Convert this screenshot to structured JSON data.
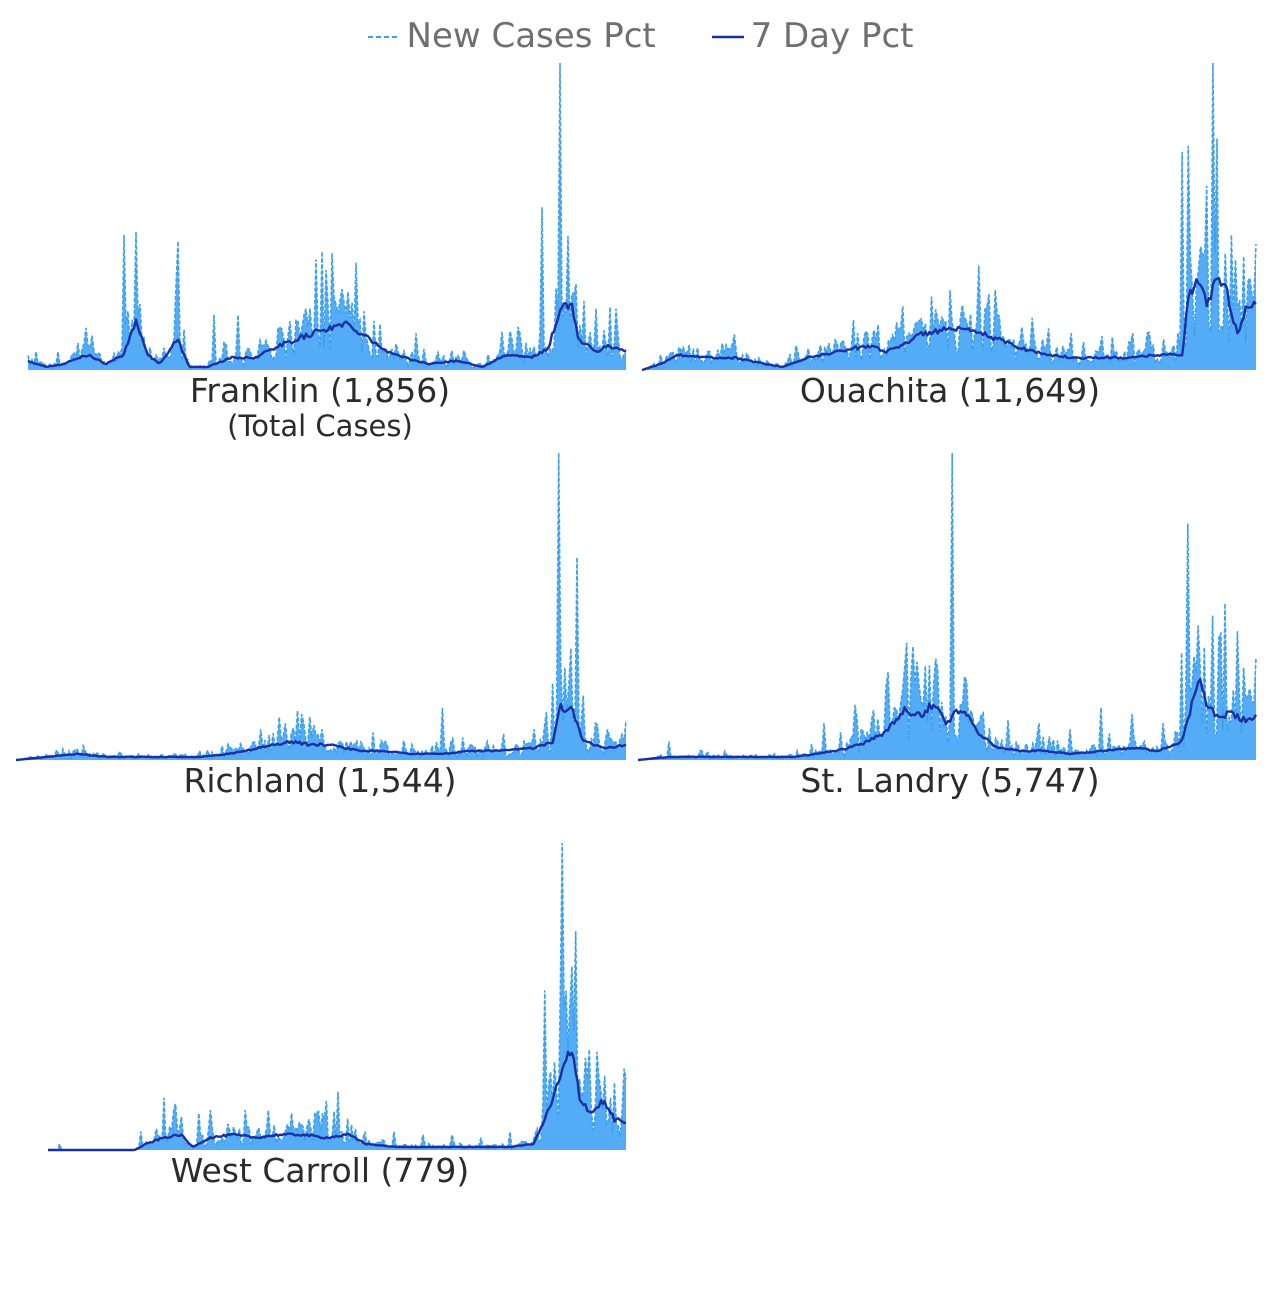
{
  "legend": {
    "items": [
      {
        "label": "New Cases Pct",
        "style": "dashed",
        "color": "#3fa0ea"
      },
      {
        "label": "7 Day Pct",
        "style": "solid",
        "color": "#1a2fa3"
      }
    ]
  },
  "colors": {
    "bar": "#54acf7",
    "daily": "#3fa0ea",
    "avg": "#1a2fa3",
    "text": "#2b2b2b",
    "legend_text": "#6f6f6f"
  },
  "chart_data": [
    {
      "type": "bar",
      "title": "Franklin (1,856)",
      "subtitle": "(Total Cases)",
      "spikes": [
        [
          0.05,
          0.06
        ],
        [
          0.1,
          0.08
        ],
        [
          0.16,
          0.44
        ],
        [
          0.18,
          0.45
        ],
        [
          0.25,
          0.42
        ],
        [
          0.31,
          0.18
        ],
        [
          0.35,
          0.18
        ],
        [
          0.45,
          0.16
        ],
        [
          0.46,
          0.18
        ],
        [
          0.47,
          0.2
        ],
        [
          0.48,
          0.36
        ],
        [
          0.51,
          0.38
        ],
        [
          0.53,
          0.22
        ],
        [
          0.55,
          0.35
        ],
        [
          0.58,
          0.16
        ],
        [
          0.59,
          0.15
        ],
        [
          0.65,
          0.12
        ],
        [
          0.82,
          0.14
        ],
        [
          0.86,
          0.53
        ],
        [
          0.89,
          1.0
        ],
        [
          0.91,
          0.2
        ],
        [
          0.93,
          0.12
        ],
        [
          0.95,
          0.2
        ]
      ],
      "avg_shape": [
        [
          0.0,
          0.03
        ],
        [
          0.03,
          0.01
        ],
        [
          0.06,
          0.02
        ],
        [
          0.1,
          0.05
        ],
        [
          0.13,
          0.02
        ],
        [
          0.16,
          0.05
        ],
        [
          0.18,
          0.16
        ],
        [
          0.2,
          0.05
        ],
        [
          0.22,
          0.02
        ],
        [
          0.25,
          0.1
        ],
        [
          0.27,
          0.01
        ],
        [
          0.3,
          0.01
        ],
        [
          0.34,
          0.04
        ],
        [
          0.38,
          0.04
        ],
        [
          0.42,
          0.08
        ],
        [
          0.45,
          0.1
        ],
        [
          0.49,
          0.13
        ],
        [
          0.53,
          0.15
        ],
        [
          0.56,
          0.12
        ],
        [
          0.6,
          0.06
        ],
        [
          0.63,
          0.04
        ],
        [
          0.67,
          0.02
        ],
        [
          0.72,
          0.03
        ],
        [
          0.76,
          0.01
        ],
        [
          0.8,
          0.05
        ],
        [
          0.84,
          0.04
        ],
        [
          0.87,
          0.07
        ],
        [
          0.89,
          0.2
        ],
        [
          0.91,
          0.21
        ],
        [
          0.92,
          0.1
        ],
        [
          0.95,
          0.06
        ],
        [
          0.97,
          0.08
        ],
        [
          1.0,
          0.06
        ]
      ]
    },
    {
      "type": "bar",
      "title": "Ouachita (11,649)",
      "spikes": [
        [
          0.05,
          0.06
        ],
        [
          0.15,
          0.05
        ],
        [
          0.25,
          0.08
        ],
        [
          0.35,
          0.12
        ],
        [
          0.38,
          0.1
        ],
        [
          0.42,
          0.14
        ],
        [
          0.45,
          0.16
        ],
        [
          0.48,
          0.16
        ],
        [
          0.5,
          0.26
        ],
        [
          0.53,
          0.16
        ],
        [
          0.55,
          0.34
        ],
        [
          0.58,
          0.13
        ],
        [
          0.62,
          0.14
        ],
        [
          0.7,
          0.12
        ],
        [
          0.75,
          0.11
        ],
        [
          0.8,
          0.12
        ],
        [
          0.85,
          0.1
        ],
        [
          0.88,
          0.71
        ],
        [
          0.89,
          0.73
        ],
        [
          0.91,
          0.31
        ],
        [
          0.92,
          0.6
        ],
        [
          0.93,
          1.0
        ],
        [
          0.95,
          0.38
        ],
        [
          0.96,
          0.44
        ],
        [
          0.98,
          0.37
        ],
        [
          0.99,
          0.3
        ],
        [
          1.0,
          0.41
        ]
      ],
      "avg_shape": [
        [
          0.0,
          0.0
        ],
        [
          0.03,
          0.02
        ],
        [
          0.06,
          0.05
        ],
        [
          0.1,
          0.04
        ],
        [
          0.15,
          0.04
        ],
        [
          0.2,
          0.02
        ],
        [
          0.23,
          0.01
        ],
        [
          0.27,
          0.04
        ],
        [
          0.32,
          0.06
        ],
        [
          0.37,
          0.08
        ],
        [
          0.4,
          0.06
        ],
        [
          0.43,
          0.09
        ],
        [
          0.46,
          0.12
        ],
        [
          0.49,
          0.13
        ],
        [
          0.52,
          0.13
        ],
        [
          0.55,
          0.12
        ],
        [
          0.58,
          0.1
        ],
        [
          0.62,
          0.07
        ],
        [
          0.66,
          0.05
        ],
        [
          0.7,
          0.04
        ],
        [
          0.75,
          0.04
        ],
        [
          0.8,
          0.04
        ],
        [
          0.84,
          0.05
        ],
        [
          0.88,
          0.05
        ],
        [
          0.89,
          0.24
        ],
        [
          0.91,
          0.3
        ],
        [
          0.92,
          0.2
        ],
        [
          0.93,
          0.26
        ],
        [
          0.94,
          0.3
        ],
        [
          0.95,
          0.28
        ],
        [
          0.96,
          0.18
        ],
        [
          0.97,
          0.12
        ],
        [
          0.98,
          0.18
        ],
        [
          0.99,
          0.22
        ],
        [
          1.0,
          0.2
        ]
      ]
    },
    {
      "type": "bar",
      "title": "Richland (1,544)",
      "spikes": [
        [
          0.05,
          0.02
        ],
        [
          0.1,
          0.03
        ],
        [
          0.2,
          0.02
        ],
        [
          0.3,
          0.03
        ],
        [
          0.35,
          0.04
        ],
        [
          0.4,
          0.1
        ],
        [
          0.43,
          0.14
        ],
        [
          0.44,
          0.12
        ],
        [
          0.46,
          0.16
        ],
        [
          0.48,
          0.14
        ],
        [
          0.5,
          0.1
        ],
        [
          0.55,
          0.06
        ],
        [
          0.6,
          0.05
        ],
        [
          0.65,
          0.05
        ],
        [
          0.7,
          0.17
        ],
        [
          0.75,
          0.04
        ],
        [
          0.8,
          0.06
        ],
        [
          0.85,
          0.1
        ],
        [
          0.88,
          0.25
        ],
        [
          0.89,
          1.0
        ],
        [
          0.9,
          0.3
        ],
        [
          0.91,
          0.22
        ],
        [
          0.92,
          0.66
        ],
        [
          0.93,
          0.21
        ],
        [
          0.95,
          0.12
        ],
        [
          0.97,
          0.1
        ],
        [
          1.0,
          0.13
        ]
      ],
      "avg_shape": [
        [
          0.0,
          0.0
        ],
        [
          0.05,
          0.01
        ],
        [
          0.1,
          0.02
        ],
        [
          0.15,
          0.01
        ],
        [
          0.2,
          0.01
        ],
        [
          0.25,
          0.01
        ],
        [
          0.3,
          0.01
        ],
        [
          0.35,
          0.02
        ],
        [
          0.4,
          0.04
        ],
        [
          0.45,
          0.06
        ],
        [
          0.48,
          0.05
        ],
        [
          0.52,
          0.05
        ],
        [
          0.56,
          0.03
        ],
        [
          0.6,
          0.03
        ],
        [
          0.65,
          0.02
        ],
        [
          0.7,
          0.02
        ],
        [
          0.75,
          0.03
        ],
        [
          0.8,
          0.03
        ],
        [
          0.85,
          0.04
        ],
        [
          0.88,
          0.06
        ],
        [
          0.89,
          0.17
        ],
        [
          0.91,
          0.17
        ],
        [
          0.92,
          0.12
        ],
        [
          0.93,
          0.06
        ],
        [
          0.95,
          0.05
        ],
        [
          0.97,
          0.04
        ],
        [
          1.0,
          0.05
        ]
      ]
    },
    {
      "type": "bar",
      "title": "St. Landry (5,747)",
      "spikes": [
        [
          0.05,
          0.06
        ],
        [
          0.1,
          0.03
        ],
        [
          0.3,
          0.12
        ],
        [
          0.35,
          0.18
        ],
        [
          0.4,
          0.24
        ],
        [
          0.43,
          0.3
        ],
        [
          0.45,
          0.32
        ],
        [
          0.47,
          0.3
        ],
        [
          0.48,
          0.33
        ],
        [
          0.51,
          1.0
        ],
        [
          0.53,
          0.23
        ],
        [
          0.55,
          0.12
        ],
        [
          0.6,
          0.13
        ],
        [
          0.65,
          0.12
        ],
        [
          0.7,
          0.1
        ],
        [
          0.75,
          0.17
        ],
        [
          0.8,
          0.15
        ],
        [
          0.85,
          0.12
        ],
        [
          0.88,
          0.35
        ],
        [
          0.89,
          0.77
        ],
        [
          0.91,
          0.3
        ],
        [
          0.93,
          0.47
        ],
        [
          0.95,
          0.51
        ],
        [
          0.97,
          0.42
        ],
        [
          0.98,
          0.3
        ],
        [
          1.0,
          0.33
        ]
      ],
      "avg_shape": [
        [
          0.0,
          0.0
        ],
        [
          0.05,
          0.01
        ],
        [
          0.1,
          0.01
        ],
        [
          0.15,
          0.01
        ],
        [
          0.2,
          0.01
        ],
        [
          0.25,
          0.01
        ],
        [
          0.29,
          0.02
        ],
        [
          0.32,
          0.03
        ],
        [
          0.36,
          0.05
        ],
        [
          0.4,
          0.09
        ],
        [
          0.43,
          0.16
        ],
        [
          0.46,
          0.15
        ],
        [
          0.48,
          0.19
        ],
        [
          0.5,
          0.12
        ],
        [
          0.51,
          0.15
        ],
        [
          0.52,
          0.16
        ],
        [
          0.53,
          0.15
        ],
        [
          0.55,
          0.09
        ],
        [
          0.58,
          0.04
        ],
        [
          0.62,
          0.03
        ],
        [
          0.66,
          0.03
        ],
        [
          0.7,
          0.02
        ],
        [
          0.75,
          0.03
        ],
        [
          0.8,
          0.04
        ],
        [
          0.84,
          0.03
        ],
        [
          0.88,
          0.06
        ],
        [
          0.9,
          0.21
        ],
        [
          0.91,
          0.25
        ],
        [
          0.92,
          0.18
        ],
        [
          0.94,
          0.14
        ],
        [
          0.96,
          0.15
        ],
        [
          0.98,
          0.13
        ],
        [
          1.0,
          0.14
        ]
      ]
    },
    {
      "type": "bar",
      "title": "West Carroll (779)",
      "spikes": [
        [
          0.02,
          0.02
        ],
        [
          0.16,
          0.06
        ],
        [
          0.2,
          0.17
        ],
        [
          0.22,
          0.15
        ],
        [
          0.26,
          0.12
        ],
        [
          0.28,
          0.13
        ],
        [
          0.34,
          0.13
        ],
        [
          0.38,
          0.13
        ],
        [
          0.42,
          0.12
        ],
        [
          0.45,
          0.1
        ],
        [
          0.48,
          0.16
        ],
        [
          0.5,
          0.19
        ],
        [
          0.55,
          0.06
        ],
        [
          0.6,
          0.06
        ],
        [
          0.65,
          0.05
        ],
        [
          0.7,
          0.05
        ],
        [
          0.75,
          0.04
        ],
        [
          0.8,
          0.06
        ],
        [
          0.86,
          0.52
        ],
        [
          0.89,
          1.0
        ],
        [
          0.91,
          0.35
        ],
        [
          0.93,
          0.3
        ],
        [
          0.95,
          0.32
        ],
        [
          0.98,
          0.22
        ],
        [
          1.0,
          0.23
        ]
      ],
      "avg_shape": [
        [
          0.0,
          0.0
        ],
        [
          0.05,
          0.0
        ],
        [
          0.1,
          0.0
        ],
        [
          0.15,
          0.0
        ],
        [
          0.17,
          0.02
        ],
        [
          0.2,
          0.04
        ],
        [
          0.23,
          0.05
        ],
        [
          0.25,
          0.01
        ],
        [
          0.28,
          0.04
        ],
        [
          0.32,
          0.05
        ],
        [
          0.36,
          0.04
        ],
        [
          0.4,
          0.05
        ],
        [
          0.44,
          0.05
        ],
        [
          0.48,
          0.04
        ],
        [
          0.52,
          0.05
        ],
        [
          0.55,
          0.02
        ],
        [
          0.6,
          0.01
        ],
        [
          0.65,
          0.01
        ],
        [
          0.7,
          0.01
        ],
        [
          0.75,
          0.01
        ],
        [
          0.8,
          0.01
        ],
        [
          0.84,
          0.02
        ],
        [
          0.86,
          0.1
        ],
        [
          0.88,
          0.2
        ],
        [
          0.9,
          0.31
        ],
        [
          0.91,
          0.29
        ],
        [
          0.92,
          0.17
        ],
        [
          0.94,
          0.12
        ],
        [
          0.96,
          0.16
        ],
        [
          0.98,
          0.1
        ],
        [
          1.0,
          0.09
        ]
      ]
    }
  ]
}
